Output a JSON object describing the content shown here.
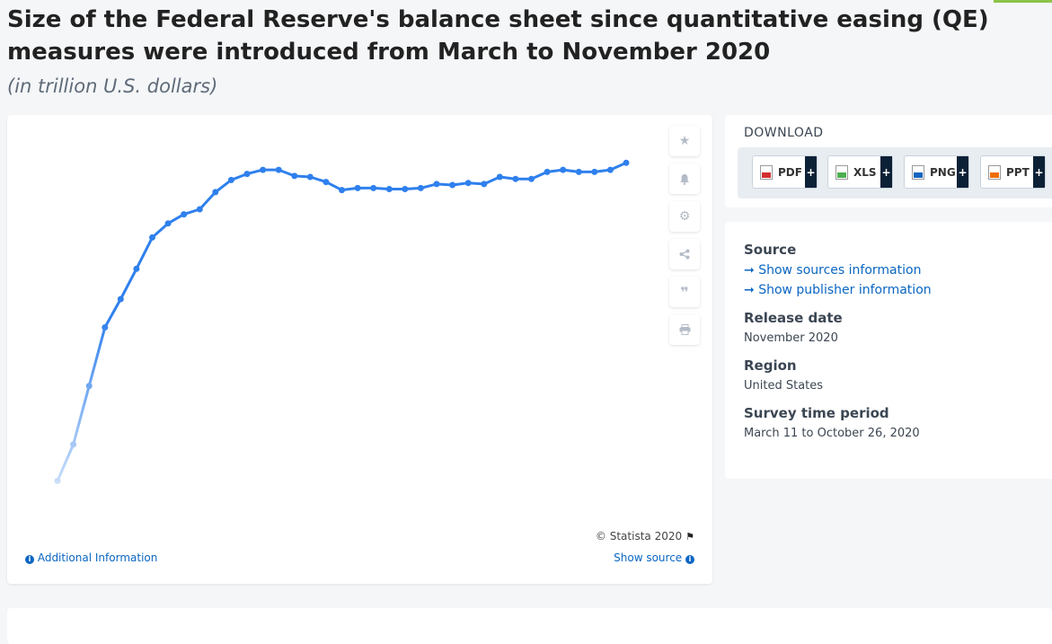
{
  "header": {
    "title": "Size of the Federal Reserve's balance sheet since quantitative easing (QE) measures were introduced from March to November 2020",
    "subtitle": "(in trillion U.S. dollars)"
  },
  "toolbar": {
    "icons": [
      "star-icon",
      "bell-icon",
      "gear-icon",
      "share-icon",
      "quote-icon",
      "print-icon"
    ]
  },
  "chart_footer": {
    "copyright": "© Statista 2020",
    "additional_info": "Additional Information",
    "show_source": "Show source"
  },
  "download": {
    "title": "DOWNLOAD",
    "buttons": [
      {
        "label": "PDF",
        "color": "#d32f2f"
      },
      {
        "label": "XLS",
        "color": "#4caf50"
      },
      {
        "label": "PNG",
        "color": "#1565c0"
      },
      {
        "label": "PPT",
        "color": "#ef6c00"
      }
    ]
  },
  "info": {
    "source_label": "Source",
    "show_sources": "Show sources information",
    "show_publisher": "Show publisher information",
    "release_label": "Release date",
    "release_value": "November 2020",
    "region_label": "Region",
    "region_value": "United States",
    "survey_label": "Survey time period",
    "survey_value": "March 11 to October 26, 2020"
  },
  "colors": {
    "line": "#2f80ed",
    "link": "#0a66c2"
  },
  "chart_data": {
    "type": "line",
    "title": "",
    "xlabel": "",
    "ylabel": "",
    "ylim": [
      4.1,
      7.4
    ],
    "grid": false,
    "series": [
      {
        "values": [
          4.31,
          4.67,
          5.25,
          5.83,
          6.11,
          6.41,
          6.72,
          6.86,
          6.95,
          7.0,
          7.17,
          7.29,
          7.35,
          7.39,
          7.39,
          7.33,
          7.32,
          7.27,
          7.19,
          7.21,
          7.21,
          7.2,
          7.2,
          7.21,
          7.25,
          7.24,
          7.26,
          7.25,
          7.32,
          7.3,
          7.3,
          7.37,
          7.39,
          7.37,
          7.37,
          7.39,
          7.46
        ]
      }
    ]
  }
}
